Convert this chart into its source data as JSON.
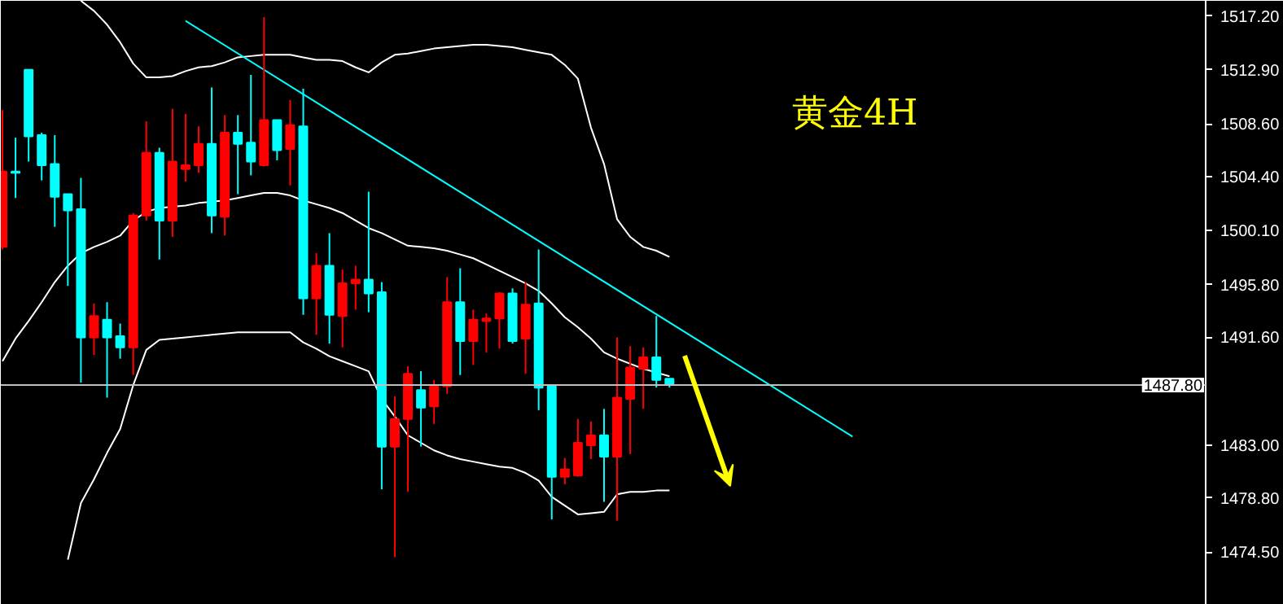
{
  "chart_data": {
    "type": "candlestick",
    "title": "黄金4H",
    "categories": [
      null,
      null,
      null,
      null,
      null,
      null,
      null,
      null,
      null,
      null,
      null,
      null,
      null,
      null,
      null,
      null,
      null,
      null,
      null,
      null,
      null,
      null,
      null,
      null,
      null,
      null,
      null,
      null,
      null,
      null,
      null,
      null,
      null,
      null,
      null,
      null,
      null,
      null,
      null,
      null,
      null,
      null,
      null,
      null,
      null,
      null,
      null,
      null,
      null,
      null,
      null,
      null,
      null,
      null,
      null,
      null,
      null,
      null,
      null,
      null,
      null,
      null,
      null,
      null,
      null,
      null
    ],
    "ohlc": [
      [
        1498.8,
        1509.7,
        1498.6,
        1504.8
      ],
      [
        1504.8,
        1507.5,
        1502.7,
        1504.7
      ],
      [
        1512.9,
        1512.9,
        1505.6,
        1507.6
      ],
      [
        1507.7,
        1507.9,
        1504.1,
        1505.3
      ],
      [
        1505.4,
        1507.7,
        1500.4,
        1502.8
      ],
      [
        1503.0,
        1503.0,
        1495.7,
        1501.7
      ],
      [
        1501.8,
        1504.3,
        1488.0,
        1491.6
      ],
      [
        1491.6,
        1494.3,
        1490.2,
        1493.3
      ],
      [
        1493.0,
        1494.4,
        1486.8,
        1491.6
      ],
      [
        1491.7,
        1492.7,
        1489.9,
        1490.8
      ],
      [
        1490.8,
        1501.5,
        1488.6,
        1501.3
      ],
      [
        1501.3,
        1508.8,
        1500.9,
        1506.3
      ],
      [
        1506.3,
        1506.7,
        1497.8,
        1500.9
      ],
      [
        1500.9,
        1509.8,
        1499.6,
        1505.6
      ],
      [
        1505.0,
        1509.4,
        1504.0,
        1505.3
      ],
      [
        1505.3,
        1508.4,
        1504.7,
        1507.0
      ],
      [
        1507.0,
        1511.5,
        1499.9,
        1501.3
      ],
      [
        1501.2,
        1509.3,
        1499.7,
        1507.9
      ],
      [
        1507.9,
        1509.3,
        1503.0,
        1507.0
      ],
      [
        1507.1,
        1512.5,
        1504.5,
        1505.6
      ],
      [
        1505.3,
        1517.1,
        1505.2,
        1508.9
      ],
      [
        1508.9,
        1508.9,
        1505.7,
        1506.5
      ],
      [
        1506.6,
        1510.5,
        1503.7,
        1508.5
      ],
      [
        1508.4,
        1511.4,
        1493.4,
        1494.7
      ],
      [
        1494.7,
        1498.3,
        1491.8,
        1497.3
      ],
      [
        1497.3,
        1499.9,
        1491.1,
        1493.4
      ],
      [
        1493.3,
        1497.0,
        1490.8,
        1495.9
      ],
      [
        1495.9,
        1497.3,
        1493.8,
        1496.2
      ],
      [
        1496.2,
        1503.2,
        1493.6,
        1495.1
      ],
      [
        1495.2,
        1496.0,
        1479.5,
        1482.9
      ],
      [
        1482.9,
        1486.9,
        1474.1,
        1485.1
      ],
      [
        1485.1,
        1489.3,
        1479.3,
        1488.7
      ],
      [
        1487.4,
        1488.9,
        1482.9,
        1486.0
      ],
      [
        1486.1,
        1488.2,
        1484.7,
        1487.7
      ],
      [
        1487.7,
        1496.4,
        1487.1,
        1494.4
      ],
      [
        1494.4,
        1497.1,
        1488.6,
        1491.3
      ],
      [
        1491.3,
        1493.8,
        1489.4,
        1493.0
      ],
      [
        1492.9,
        1493.5,
        1490.4,
        1493.1
      ],
      [
        1493.1,
        1495.2,
        1490.7,
        1495.1
      ],
      [
        1495.1,
        1495.5,
        1491.1,
        1491.3
      ],
      [
        1491.5,
        1496.0,
        1488.7,
        1494.2
      ],
      [
        1494.3,
        1498.6,
        1485.8,
        1487.6
      ],
      [
        1487.7,
        1487.7,
        1477.1,
        1480.5
      ],
      [
        1480.5,
        1482.0,
        1479.9,
        1481.1
      ],
      [
        1480.6,
        1485.1,
        1480.5,
        1483.2
      ],
      [
        1483.0,
        1484.9,
        1481.9,
        1483.8
      ],
      [
        1483.8,
        1485.9,
        1478.5,
        1482.1
      ],
      [
        1482.1,
        1491.6,
        1477.0,
        1486.8
      ],
      [
        1486.7,
        1490.9,
        1482.3,
        1489.2
      ],
      [
        1489.1,
        1490.8,
        1485.9,
        1490.0
      ],
      [
        1490.0,
        1493.3,
        1487.6,
        1488.2
      ],
      [
        1488.3,
        1488.3,
        1487.6,
        1487.8
      ],
      null,
      null,
      null,
      null,
      null,
      null,
      null,
      null,
      null,
      null,
      null,
      null,
      null,
      null
    ],
    "colors": [
      "#ff0000",
      "#00ffff",
      "#00ffff",
      "#00ffff",
      "#00ffff",
      "#00ffff",
      "#00ffff",
      "#ff0000",
      "#00ffff",
      "#00ffff",
      "#ff0000",
      "#ff0000",
      "#00ffff",
      "#ff0000",
      "#ff0000",
      "#ff0000",
      "#00ffff",
      "#ff0000",
      "#00ffff",
      "#00ffff",
      "#ff0000",
      "#00ffff",
      "#ff0000",
      "#00ffff",
      "#ff0000",
      "#00ffff",
      "#ff0000",
      "#ff0000",
      "#00ffff",
      "#00ffff",
      "#ff0000",
      "#ff0000",
      "#00ffff",
      "#ff0000",
      "#ff0000",
      "#00ffff",
      "#ff0000",
      "#ff0000",
      "#ff0000",
      "#00ffff",
      "#ff0000",
      "#00ffff",
      "#00ffff",
      "#ff0000",
      "#ff0000",
      "#ff0000",
      "#00ffff",
      "#ff0000",
      "#ff0000",
      "#ff0000",
      "#00ffff",
      "#00ffff",
      null,
      null,
      null,
      null,
      null,
      null,
      null,
      null,
      null,
      null,
      null,
      null,
      null,
      null
    ],
    "series": [
      {
        "type": "line",
        "color": "#ffffff",
        "values": [
          null,
          null,
          null,
          null,
          null,
          null,
          1518.4,
          1517.6,
          1516.5,
          1515.1,
          1513.4,
          1512.3,
          1512.3,
          1512.4,
          1512.8,
          1513.1,
          1513.2,
          1513.5,
          1513.9,
          1514.0,
          1514.1,
          1514.1,
          1514.1,
          1513.9,
          1513.7,
          1513.7,
          1513.6,
          1513.1,
          1512.7,
          1513.5,
          1514.1,
          1514.2,
          1514.4,
          1514.6,
          1514.7,
          1514.8,
          1514.9,
          1514.9,
          1514.8,
          1514.7,
          1514.5,
          1514.3,
          1514.1,
          1513.3,
          1512.2,
          1508.3,
          1505.4,
          1501.0,
          1499.6,
          1498.8,
          1498.5,
          1498.0,
          null,
          null,
          null,
          null,
          null,
          null,
          null,
          null,
          null,
          null,
          null,
          null,
          null,
          null
        ]
      },
      {
        "type": "line",
        "color": "#ffffff",
        "values": [
          1489.7,
          1491.5,
          1492.9,
          1494.4,
          1496.0,
          1497.3,
          1498.3,
          1498.8,
          1499.2,
          1499.7,
          1500.9,
          1501.6,
          1501.9,
          1502.0,
          1502.1,
          1502.3,
          1502.4,
          1502.5,
          1502.7,
          1502.9,
          1503.1,
          1503.1,
          1502.9,
          1502.5,
          1502.2,
          1501.9,
          1501.5,
          1500.9,
          1500.3,
          1499.9,
          1499.4,
          1498.9,
          1498.8,
          1498.7,
          1498.5,
          1498.2,
          1497.9,
          1497.4,
          1496.9,
          1496.4,
          1495.9,
          1495.3,
          1494.3,
          1493.2,
          1492.4,
          1491.5,
          1490.4,
          1489.9,
          1489.5,
          1489.1,
          1488.8,
          1488.5,
          null,
          null,
          null,
          null,
          null,
          null,
          null,
          null,
          null,
          null,
          null,
          null,
          null,
          null
        ]
      },
      {
        "type": "line",
        "color": "#ffffff",
        "values": [
          null,
          null,
          null,
          null,
          null,
          1473.9,
          1478.4,
          1480.3,
          1482.4,
          1484.3,
          1487.8,
          1490.6,
          1491.4,
          1491.5,
          1491.6,
          1491.7,
          1491.8,
          1491.9,
          1492.0,
          1492.0,
          1492.0,
          1492.0,
          1492.0,
          1491.2,
          1490.7,
          1490.1,
          1489.7,
          1489.3,
          1488.9,
          1486.7,
          1485.3,
          1483.8,
          1483.2,
          1482.6,
          1482.2,
          1481.9,
          1481.7,
          1481.5,
          1481.3,
          1481.2,
          1480.8,
          1480.2,
          1478.9,
          1478.2,
          1477.5,
          1477.6,
          1477.7,
          1479.1,
          1479.3,
          1479.3,
          1479.4,
          1479.4,
          null,
          null,
          null,
          null,
          null,
          null,
          null,
          null,
          null,
          null,
          null,
          null,
          null,
          null
        ]
      },
      {
        "type": "line",
        "color": "#00ffff",
        "values": [
          null,
          null,
          null,
          null,
          null,
          null,
          null,
          null,
          null,
          null,
          null,
          null,
          null,
          null,
          1516.8,
          null,
          null,
          null,
          null,
          null,
          null,
          null,
          null,
          null,
          null,
          null,
          null,
          null,
          null,
          null,
          null,
          null,
          null,
          null,
          null,
          null,
          null,
          null,
          null,
          null,
          null,
          null,
          null,
          null,
          null,
          null,
          null,
          null,
          null,
          null,
          null,
          null,
          null,
          null,
          null,
          null,
          null,
          null,
          null,
          null,
          null,
          null,
          null,
          null,
          null,
          1483.7
        ]
      }
    ],
    "ylim": [
      1470.3,
      1518.4
    ],
    "yticks": [
      {
        "value": 1517.2,
        "label": "1517.20"
      },
      {
        "value": 1512.9,
        "label": "1512.90"
      },
      {
        "value": 1508.6,
        "label": "1508.60"
      },
      {
        "value": 1504.4,
        "label": "1504.40"
      },
      {
        "value": 1500.1,
        "label": "1500.10"
      },
      {
        "value": 1495.8,
        "label": "1495.80"
      },
      {
        "value": 1491.6,
        "label": "1491.60"
      },
      {
        "value": 1483.0,
        "label": "1483.00"
      },
      {
        "value": 1478.8,
        "label": "1478.80"
      },
      {
        "value": 1474.5,
        "label": "1474.50"
      }
    ],
    "ref_lines": [
      {
        "axis": "y",
        "value": 1487.8,
        "label": "1487.80",
        "color": "#c0c0c0"
      }
    ],
    "tick_labels": "y"
  }
}
